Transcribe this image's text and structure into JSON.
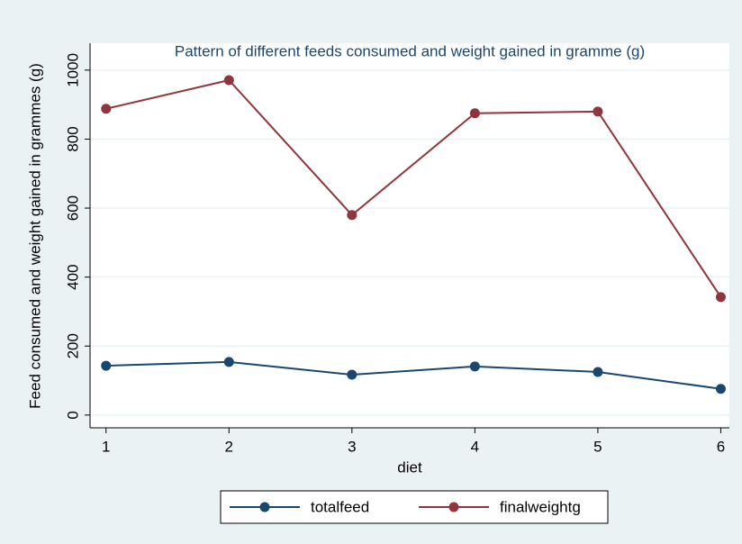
{
  "chart_data": {
    "type": "line",
    "title": "Pattern of different feeds consumed and weight gained in gramme (g)",
    "x_label": "diet",
    "y_label": "Feed consumed and weight gained in grammes (g)",
    "x": [
      1,
      2,
      3,
      4,
      5,
      6
    ],
    "series": [
      {
        "name": "totalfeed",
        "color": "#1a476f",
        "values": [
          143,
          154,
          117,
          141,
          125,
          76
        ]
      },
      {
        "name": "finalweightg",
        "color": "#90353b",
        "values": [
          888,
          971,
          580,
          875,
          880,
          342
        ]
      }
    ],
    "xlim": [
      0.87,
      6.07
    ],
    "xticks": [
      1,
      2,
      3,
      4,
      5,
      6
    ],
    "ylim": [
      -37,
      1078
    ],
    "yticks": [
      0,
      200,
      400,
      600,
      800,
      1000
    ],
    "grid": true,
    "legend": "bottom"
  }
}
